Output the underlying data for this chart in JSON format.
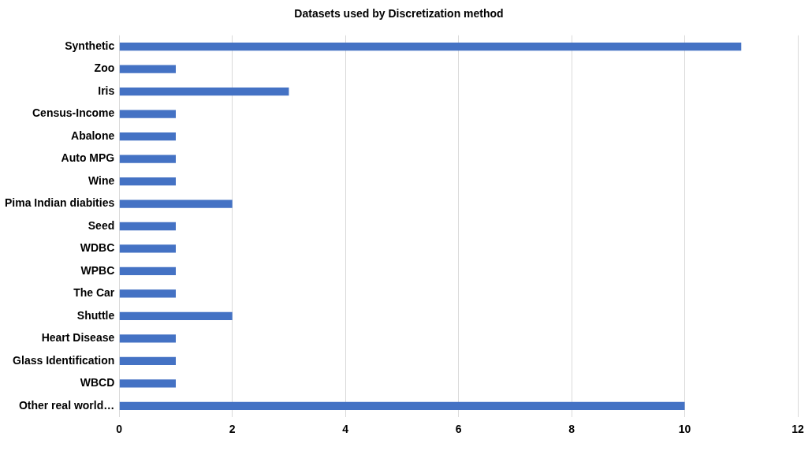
{
  "chart_data": {
    "type": "bar",
    "orientation": "horizontal",
    "title": "Datasets used by Discretization method",
    "categories": [
      "Synthetic",
      "Zoo",
      "Iris",
      "Census-Income",
      "Abalone",
      "Auto MPG",
      "Wine",
      "Pima Indian diabities",
      "Seed",
      "WDBC",
      "WPBC",
      "The Car",
      "Shuttle",
      "Heart Disease",
      "Glass Identification",
      "WBCD",
      "Other real world…"
    ],
    "values": [
      11,
      1,
      3,
      1,
      1,
      1,
      1,
      2,
      1,
      1,
      1,
      1,
      2,
      1,
      1,
      1,
      10
    ],
    "color": "#4472c4",
    "xlim": [
      0,
      12
    ],
    "xticks": [
      0,
      2,
      4,
      6,
      8,
      10,
      12
    ],
    "grid": "x",
    "legend": false
  }
}
